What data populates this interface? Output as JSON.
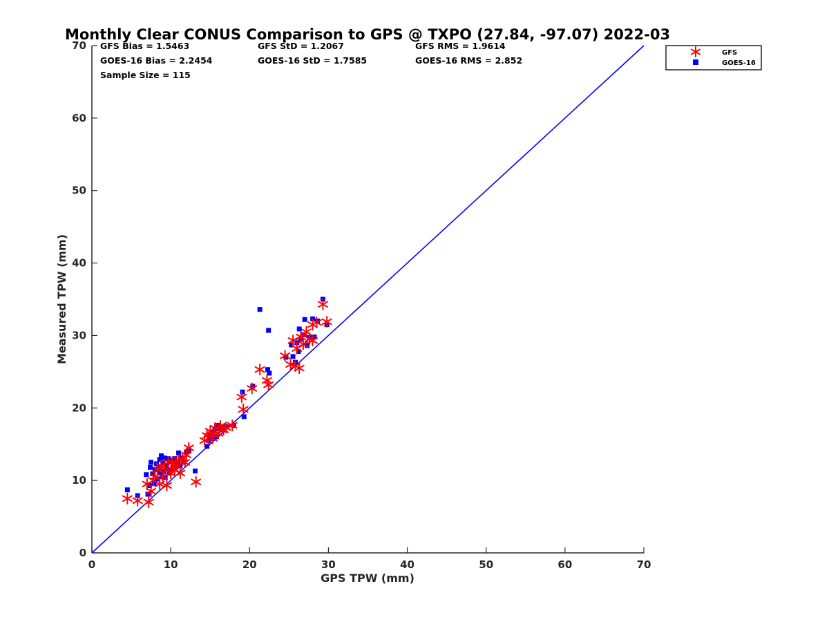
{
  "chart_data": {
    "type": "scatter",
    "title": "Monthly Clear CONUS Comparison to GPS @ TXPO (27.84, -97.07) 2022-03",
    "xlabel": "GPS TPW (mm)",
    "ylabel": "Measured TPW (mm)",
    "xlim": [
      0,
      70
    ],
    "ylim": [
      0,
      70
    ],
    "x_ticks": [
      "0",
      "10",
      "20",
      "30",
      "40",
      "50",
      "60",
      "70"
    ],
    "y_ticks": [
      "0",
      "10",
      "20",
      "30",
      "40",
      "50",
      "60",
      "70"
    ],
    "grid": false,
    "legend_position": "outside top-right",
    "stats": {
      "gfs_bias": "GFS Bias = 1.5463",
      "gfs_std": "GFS StD = 1.2067",
      "gfs_rms": "GFS RMS = 1.9614",
      "goes_bias": "GOES-16 Bias = 2.2454",
      "goes_std": "GOES-16 StD = 1.7585",
      "goes_rms": "GOES-16 RMS = 2.852",
      "sample_size": "Sample Size = 115"
    },
    "reference_line": {
      "x": [
        0,
        70
      ],
      "y": [
        0,
        70
      ],
      "color": "#0000ff"
    },
    "series": [
      {
        "name": "GFS",
        "marker": "asterisk",
        "color": "#ff0000",
        "points": [
          [
            4.5,
            7.5
          ],
          [
            5.8,
            7.2
          ],
          [
            7.2,
            7.0
          ],
          [
            7.0,
            9.5
          ],
          [
            7.5,
            8.5
          ],
          [
            7.8,
            10.0
          ],
          [
            8.0,
            10.5
          ],
          [
            8.3,
            11.5
          ],
          [
            8.6,
            9.5
          ],
          [
            8.8,
            12.0
          ],
          [
            9.0,
            10.5
          ],
          [
            9.2,
            11.8
          ],
          [
            9.5,
            9.3
          ],
          [
            9.7,
            12.5
          ],
          [
            10.0,
            11.0
          ],
          [
            10.2,
            12.5
          ],
          [
            10.5,
            11.5
          ],
          [
            10.8,
            12.0
          ],
          [
            11.0,
            12.8
          ],
          [
            11.2,
            11.0
          ],
          [
            11.5,
            13.0
          ],
          [
            11.8,
            12.5
          ],
          [
            12.0,
            13.5
          ],
          [
            12.3,
            14.5
          ],
          [
            13.2,
            9.8
          ],
          [
            14.3,
            15.5
          ],
          [
            14.6,
            16.2
          ],
          [
            15.0,
            16.8
          ],
          [
            15.3,
            15.8
          ],
          [
            15.6,
            17.2
          ],
          [
            16.0,
            16.5
          ],
          [
            16.3,
            17.5
          ],
          [
            16.7,
            17.0
          ],
          [
            17.0,
            17.3
          ],
          [
            17.8,
            17.6
          ],
          [
            19.0,
            21.5
          ],
          [
            19.2,
            19.8
          ],
          [
            20.3,
            22.7
          ],
          [
            21.3,
            25.3
          ],
          [
            22.2,
            23.8
          ],
          [
            22.4,
            23.2
          ],
          [
            24.5,
            27.2
          ],
          [
            25.2,
            26.0
          ],
          [
            25.5,
            29.3
          ],
          [
            25.8,
            25.8
          ],
          [
            26.0,
            28.2
          ],
          [
            26.3,
            25.5
          ],
          [
            26.5,
            29.8
          ],
          [
            26.8,
            28.8
          ],
          [
            27.2,
            30.5
          ],
          [
            27.6,
            29.5
          ],
          [
            28.0,
            31.5
          ],
          [
            28.0,
            29.3
          ],
          [
            28.5,
            31.8
          ],
          [
            29.3,
            34.3
          ],
          [
            29.8,
            31.9
          ]
        ]
      },
      {
        "name": "GOES-16",
        "marker": "square",
        "color": "#0000ff",
        "points": [
          [
            4.5,
            8.7
          ],
          [
            5.8,
            7.9
          ],
          [
            6.9,
            10.8
          ],
          [
            7.1,
            8.1
          ],
          [
            7.3,
            9.3
          ],
          [
            7.4,
            11.8
          ],
          [
            7.5,
            12.5
          ],
          [
            7.7,
            10.9
          ],
          [
            7.9,
            9.6
          ],
          [
            8.0,
            11.5
          ],
          [
            8.2,
            12.3
          ],
          [
            8.3,
            10.2
          ],
          [
            8.5,
            11.8
          ],
          [
            8.6,
            12.9
          ],
          [
            8.7,
            11.0
          ],
          [
            8.8,
            13.4
          ],
          [
            8.9,
            10.5
          ],
          [
            9.0,
            12.4
          ],
          [
            9.1,
            11.2
          ],
          [
            9.2,
            13.1
          ],
          [
            9.3,
            10.4
          ],
          [
            9.4,
            12.0
          ],
          [
            9.5,
            11.6
          ],
          [
            9.7,
            13.0
          ],
          [
            9.8,
            11.0
          ],
          [
            10.0,
            12.7
          ],
          [
            10.1,
            11.4
          ],
          [
            10.3,
            12.2
          ],
          [
            10.5,
            13.0
          ],
          [
            10.7,
            11.9
          ],
          [
            10.9,
            12.6
          ],
          [
            11.0,
            13.8
          ],
          [
            11.2,
            12.1
          ],
          [
            11.4,
            13.1
          ],
          [
            11.6,
            12.5
          ],
          [
            12.0,
            13.9
          ],
          [
            12.3,
            14.2
          ],
          [
            13.1,
            11.3
          ],
          [
            14.6,
            14.7
          ],
          [
            14.8,
            15.5
          ],
          [
            15.0,
            16.2
          ],
          [
            15.2,
            15.8
          ],
          [
            15.4,
            16.5
          ],
          [
            15.6,
            17.1
          ],
          [
            15.8,
            16.0
          ],
          [
            16.0,
            17.6
          ],
          [
            16.4,
            17.3
          ],
          [
            16.6,
            17.0
          ],
          [
            17.1,
            17.4
          ],
          [
            18.0,
            17.6
          ],
          [
            19.1,
            22.2
          ],
          [
            19.3,
            18.8
          ],
          [
            20.4,
            23.0
          ],
          [
            21.3,
            33.6
          ],
          [
            22.3,
            25.3
          ],
          [
            22.4,
            30.7
          ],
          [
            22.5,
            24.8
          ],
          [
            24.6,
            27.0
          ],
          [
            25.3,
            28.7
          ],
          [
            25.5,
            27.1
          ],
          [
            25.8,
            26.3
          ],
          [
            26.0,
            29.0
          ],
          [
            26.2,
            27.8
          ],
          [
            26.3,
            30.9
          ],
          [
            26.5,
            29.5
          ],
          [
            26.8,
            30.1
          ],
          [
            27.0,
            32.2
          ],
          [
            27.3,
            28.6
          ],
          [
            27.6,
            29.7
          ],
          [
            28.0,
            32.3
          ],
          [
            28.2,
            29.8
          ],
          [
            28.6,
            32.0
          ],
          [
            29.3,
            35.0
          ],
          [
            29.8,
            31.5
          ]
        ]
      }
    ]
  }
}
